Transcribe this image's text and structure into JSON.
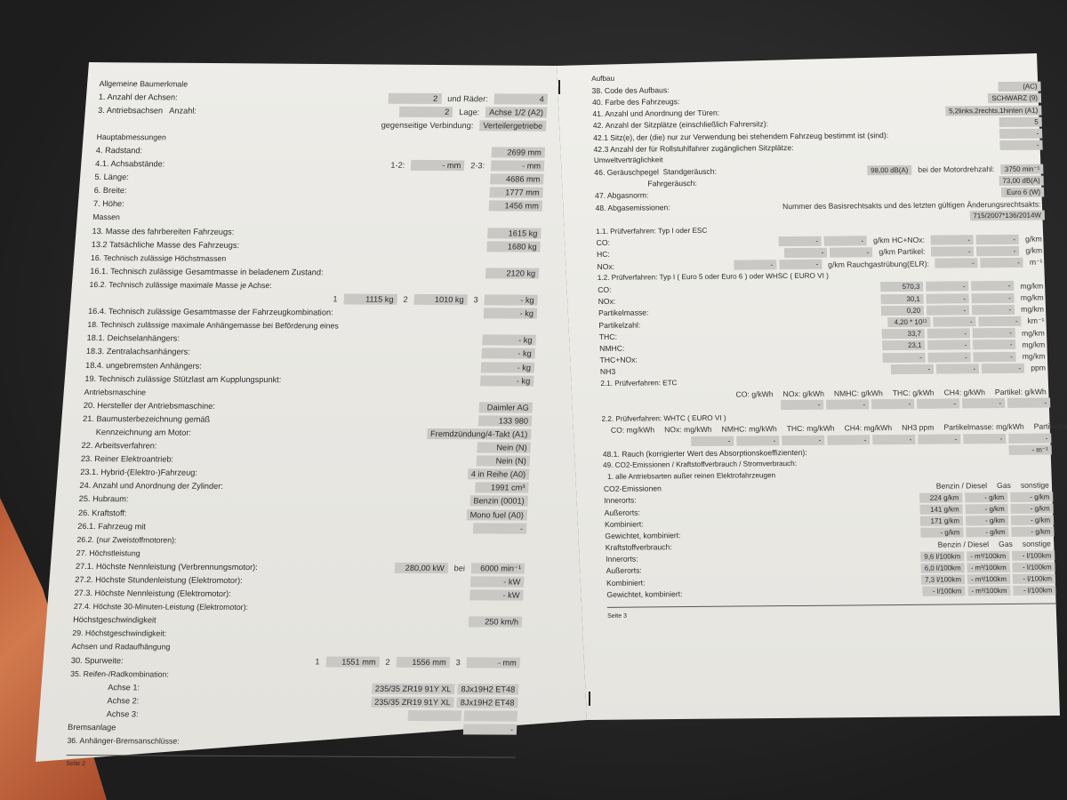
{
  "left_page": {
    "rows": [
      {
        "label": "Allgemeine Baumerkmale",
        "fields": []
      },
      {
        "label": "1. Anzahl der Achsen:",
        "fields": [
          "2",
          {
            "label": "und Räder:"
          },
          "4"
        ]
      },
      {
        "label": "3. Antriebsachsen   Anzahl:",
        "fields": [
          "2",
          {
            "label": "Lage:"
          },
          "Achse 1/2 (A2)"
        ]
      },
      {
        "label": "",
        "fields": [
          {
            "label": "gegenseitige Verbindung:"
          },
          "Verteilergetriebe"
        ]
      },
      {
        "label": "Hauptabmessungen",
        "fields": []
      },
      {
        "label": "4. Radstand:",
        "fields": [
          "2699 mm"
        ]
      },
      {
        "label": "4.1. Achsabstände:",
        "fields": [
          {
            "label": "1-2:"
          },
          "- mm",
          {
            "label": "2-3:"
          },
          "- mm"
        ]
      },
      {
        "label": "5. Länge:",
        "fields": [
          "4686 mm"
        ]
      },
      {
        "label": "6. Breite:",
        "fields": [
          "1777 mm"
        ]
      },
      {
        "label": "7. Höhe:",
        "fields": [
          "1456 mm"
        ]
      },
      {
        "label": "Massen",
        "fields": []
      },
      {
        "label": "13. Masse des fahrbereiten Fahrzeugs:",
        "fields": [
          "1615 kg"
        ]
      },
      {
        "label": "13.2 Tatsächliche Masse des Fahrzeugs:",
        "fields": [
          "1680 kg"
        ]
      },
      {
        "label": "16. Technisch zulässige Höchstmassen",
        "fields": []
      },
      {
        "label": "16.1. Technisch zulässige Gesamtmasse in beladenem Zustand:",
        "fields": [
          "2120 kg"
        ]
      },
      {
        "label": "16.2. Technisch zulässige maximale Masse je Achse:",
        "fields": []
      },
      {
        "label": "",
        "fields": [
          {
            "label": "1"
          },
          "1115 kg",
          {
            "label": "2"
          },
          "1010 kg",
          {
            "label": "3"
          },
          "- kg"
        ]
      },
      {
        "label": "16.4. Technisch zulässige Gesamtmasse der Fahrzeugkombination:",
        "fields": [
          "- kg"
        ]
      },
      {
        "label": "18. Technisch zulässige maximale Anhängemasse bei Beförderung eines",
        "fields": []
      },
      {
        "label": "18.1. Deichselanhängers:",
        "fields": [
          "- kg"
        ]
      },
      {
        "label": "18.3. Zentralachsanhängers:",
        "fields": [
          "- kg"
        ]
      },
      {
        "label": "18.4. ungebremsten Anhängers:",
        "fields": [
          "- kg"
        ]
      },
      {
        "label": "19. Technisch zulässige Stützlast am Kupplungspunkt:",
        "fields": [
          "- kg"
        ]
      },
      {
        "label": "Antriebsmaschine",
        "fields": []
      },
      {
        "label": "20. Hersteller der Antriebsmaschine:",
        "fields": [
          "Daimler AG"
        ]
      },
      {
        "label": "21. Baumusterbezeichnung gemäß",
        "fields": [
          "133 980"
        ]
      },
      {
        "label": "      Kennzeichnung am Motor:",
        "fields": [
          "Fremdzündung/4-Takt (A1)"
        ]
      },
      {
        "label": "22. Arbeitsverfahren:",
        "fields": [
          "Nein (N)"
        ]
      },
      {
        "label": "23. Reiner Elektroantrieb:",
        "fields": [
          "Nein (N)"
        ]
      },
      {
        "label": "23.1. Hybrid-(Elektro-)Fahrzeug:",
        "fields": [
          "4 in Reihe (A0)"
        ]
      },
      {
        "label": "24. Anzahl und Anordnung der Zylinder:",
        "fields": [
          "1991 cm³"
        ]
      },
      {
        "label": "25. Hubraum:",
        "fields": [
          "Benzin (0001)"
        ]
      },
      {
        "label": "26. Kraftstoff:",
        "fields": [
          "Mono fuel (A0)"
        ]
      },
      {
        "label": "26.1. Fahrzeug mit",
        "fields": [
          "-"
        ]
      },
      {
        "label": "26.2. (nur Zweistoffmotoren):",
        "fields": []
      },
      {
        "label": "27. Höchstleistung",
        "fields": []
      },
      {
        "label": "27.1. Höchste Nennleistung (Verbrennungsmotor):",
        "fields": [
          "280,00 kW",
          {
            "label": "bei"
          },
          "6000 min⁻¹"
        ]
      },
      {
        "label": "27.2. Höchste Stundenleistung (Elektromotor):",
        "fields": [
          "- kW"
        ]
      },
      {
        "label": "27.3. Höchste Nennleistung (Elektromotor):",
        "fields": [
          "- kW"
        ]
      },
      {
        "label": "27.4. Höchste 30-Minuten-Leistung (Elektromotor):",
        "fields": []
      },
      {
        "label": "Höchstgeschwindigkeit",
        "fields": [
          "250 km/h"
        ]
      },
      {
        "label": "29. Höchstgeschwindigkeit:",
        "fields": []
      },
      {
        "label": "Achsen und Radaufhängung",
        "fields": []
      },
      {
        "label": "30. Spurweite:",
        "fields": [
          {
            "label": "1"
          },
          "1551 mm",
          {
            "label": "2"
          },
          "1556 mm",
          {
            "label": "3"
          },
          "- mm"
        ]
      },
      {
        "label": "35. Reifen-/Radkombination:",
        "fields": []
      },
      {
        "label": "                 Achse 1:",
        "fields": [
          "235/35 ZR19 91Y XL",
          "8Jx19H2 ET48"
        ]
      },
      {
        "label": "                 Achse 2:",
        "fields": [
          "235/35 ZR19 91Y XL",
          "8Jx19H2 ET48"
        ]
      },
      {
        "label": "                 Achse 3:",
        "fields": [
          "",
          ""
        ]
      },
      {
        "label": "Bremsanlage",
        "fields": [
          "-"
        ]
      },
      {
        "label": "36. Anhänger-Bremsanschlüsse:",
        "fields": []
      }
    ],
    "footer": "Seite 2"
  },
  "right_page": {
    "rows": [
      {
        "label": "Aufbau",
        "fields": []
      },
      {
        "label": "38. Code des Aufbaus:",
        "fields": [
          "(AC)"
        ]
      },
      {
        "label": "40. Farbe des Fahrzeugs:",
        "fields": [
          "SCHWARZ (9)"
        ]
      },
      {
        "label": "41. Anzahl und Anordnung der Türen:",
        "fields": [
          "5,2links,2rechts,1hinten (A1)"
        ]
      },
      {
        "label": "42. Anzahl der Sitzplätze (einschließlich Fahrersitz):",
        "fields": [
          "5"
        ]
      },
      {
        "label": "42.1 Sitz(e), der (die) nur zur Verwendung bei stehendem Fahrzeug bestimmt ist (sind):",
        "fields": [
          "-"
        ]
      },
      {
        "label": "42.3 Anzahl der für Rollstuhlfahrer zugänglichen Sitzplätze:",
        "fields": [
          "-"
        ]
      },
      {
        "label": "Umweltverträglichkeit",
        "fields": []
      },
      {
        "label": "46. Geräuschpegel  Standgeräusch:",
        "fields": [
          "98,00 dB(A)",
          {
            "label": "bei der Motordrehzahl:"
          },
          "3750 min⁻¹"
        ]
      },
      {
        "label": "                         Fahrgeräusch:",
        "fields": [
          "73,00 dB(A)"
        ]
      },
      {
        "label": "47. Abgasnorm:",
        "fields": [
          "Euro 6 (W)"
        ]
      },
      {
        "label": "48. Abgasemissionen:",
        "fields": [
          {
            "label": "Nummer des Basisrechtsakts und des letzten gültigen Änderungsrechtsakts:"
          }
        ]
      },
      {
        "label": "",
        "fields": [
          "715/2007*136/2014W"
        ]
      },
      {
        "label": "1.1. Prüfverfahren: Typ I oder ESC",
        "fields": []
      },
      {
        "label": "CO:",
        "fields": [
          "-",
          "-",
          {
            "label": "g/km  HC+NOx:"
          },
          "-",
          "-",
          {
            "label": "g/km"
          }
        ]
      },
      {
        "label": "HC:",
        "fields": [
          "-",
          "-",
          {
            "label": "g/km  Partikel:"
          },
          "-",
          "-",
          {
            "label": "g/km"
          }
        ]
      },
      {
        "label": "NOx:",
        "fields": [
          "-",
          "-",
          {
            "label": "g/km  Rauchgastrübung(ELR):"
          },
          "-",
          "-",
          {
            "label": "m⁻¹"
          }
        ]
      },
      {
        "label": "1.2. Prüfverfahren: Typ I ( Euro 5 oder Euro 6 ) oder WHSC ( EURO VI )",
        "fields": []
      },
      {
        "label": "CO:",
        "fields": [
          "570,3",
          "-",
          "-",
          {
            "label": "mg/km"
          }
        ]
      },
      {
        "label": "NOx:",
        "fields": [
          "30,1",
          "-",
          "-",
          {
            "label": "mg/km"
          }
        ]
      },
      {
        "label": "Partikelmasse:",
        "fields": [
          "0,20",
          "-",
          "-",
          {
            "label": "mg/km"
          }
        ]
      },
      {
        "label": "Partikelzahl:",
        "fields": [
          "4,20 * 10¹¹",
          "-",
          "-",
          {
            "label": "km⁻¹"
          }
        ]
      },
      {
        "label": "THC:",
        "fields": [
          "33,7",
          "-",
          "-",
          {
            "label": "mg/km"
          }
        ]
      },
      {
        "label": "NMHC:",
        "fields": [
          "23,1",
          "-",
          "-",
          {
            "label": "mg/km"
          }
        ]
      },
      {
        "label": "THC+NOx:",
        "fields": [
          "-",
          "-",
          "-",
          {
            "label": "mg/km"
          }
        ]
      },
      {
        "label": "NH3",
        "fields": [
          "-",
          "-",
          "-",
          {
            "label": "ppm"
          }
        ]
      },
      {
        "label": "2.1. Prüfverfahren: ETC",
        "fields": []
      },
      {
        "label": "",
        "fields": [
          {
            "label": "CO: g/kWh"
          },
          {
            "label": "NOx: g/kWh"
          },
          {
            "label": "NMHC: g/kWh"
          },
          {
            "label": "THC: g/kWh"
          },
          {
            "label": "CH4: g/kWh"
          },
          {
            "label": "Partikel: g/kWh"
          }
        ]
      },
      {
        "label": "",
        "fields": [
          "-",
          "-",
          "-",
          "-",
          "-",
          "-"
        ]
      },
      {
        "label": "2.2. Prüfverfahren: WHTC ( EURO VI )",
        "fields": []
      },
      {
        "label": "",
        "fields": [
          {
            "label": "CO: mg/kWh"
          },
          {
            "label": "NOx: mg/kWh"
          },
          {
            "label": "NMHC: mg/kWh"
          },
          {
            "label": "THC: mg/kWh"
          },
          {
            "label": "CH4: mg/kWh"
          },
          {
            "label": "NH3 ppm"
          },
          {
            "label": "Partikelmasse: mg/kWh"
          },
          {
            "label": "Partikelzahl: kWh⁻¹"
          }
        ]
      },
      {
        "label": "",
        "fields": [
          "-",
          "-",
          "-",
          "-",
          "-",
          "-",
          "-",
          "-"
        ]
      },
      {
        "label": "48.1. Rauch (korrigierter Wert des Absorptionskoeffizienten):",
        "fields": [
          "- m⁻¹"
        ]
      },
      {
        "label": "49. CO2-Emissionen / Kraftstoffverbrauch / Stromverbrauch:",
        "fields": []
      },
      {
        "label": "  1. alle Antriebsarten außer reinen Elektrofahrzeugen",
        "fields": []
      },
      {
        "label": "CO2-Emissionen",
        "fields": [
          {
            "label": "Benzin / Diesel"
          },
          {
            "label": "Gas"
          },
          {
            "label": "sonstige"
          }
        ]
      },
      {
        "label": "Innerorts:",
        "fields": [
          "224 g/km",
          "- g/km",
          "- g/km"
        ]
      },
      {
        "label": "Außerorts:",
        "fields": [
          "141 g/km",
          "- g/km",
          "- g/km"
        ]
      },
      {
        "label": "Kombiniert:",
        "fields": [
          "171 g/km",
          "- g/km",
          "- g/km"
        ]
      },
      {
        "label": "Gewichtet, kombiniert:",
        "fields": [
          "- g/km",
          "- g/km",
          "- g/km"
        ]
      },
      {
        "label": "Kraftstoffverbrauch:",
        "fields": [
          {
            "label": "Benzin / Diesel"
          },
          {
            "label": "Gas"
          },
          {
            "label": "sonstige"
          }
        ]
      },
      {
        "label": "Innerorts:",
        "fields": [
          "9,6 l/100km",
          "- m³/100km",
          "- l/100km"
        ]
      },
      {
        "label": "Außerorts:",
        "fields": [
          "6,0 l/100km",
          "- m³/100km",
          "- l/100km"
        ]
      },
      {
        "label": "Kombiniert:",
        "fields": [
          "7,3 l/100km",
          "- m³/100km",
          "- l/100km"
        ]
      },
      {
        "label": "Gewichtet, kombiniert:",
        "fields": [
          "- l/100km",
          "- m³/100km",
          "- l/100km"
        ]
      }
    ],
    "footer": "Seite 3"
  }
}
